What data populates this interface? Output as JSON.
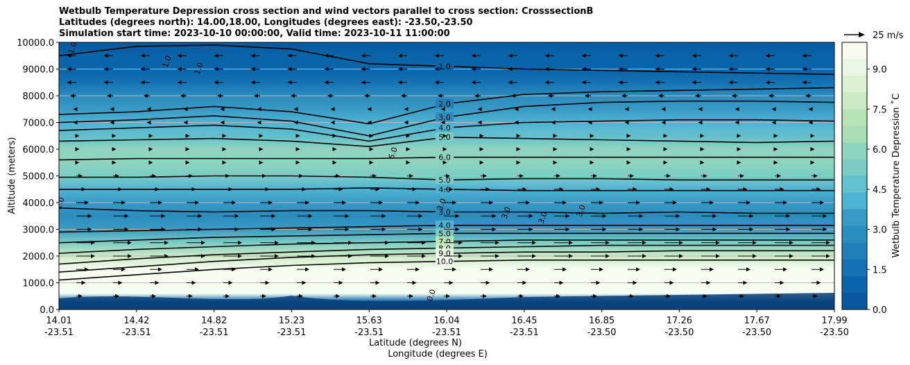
{
  "chart_data": {
    "type": "heatmap",
    "title_lines": [
      "Wetbulb Temperature Depression cross section and wind vectors parallel to cross section: CrosssectionB",
      "Latitudes (degrees north): 14.00,18.00, Longitudes (degrees east): -23.50,-23.50",
      "Simulation start time: 2023-10-10 00:00:00, Valid time: 2023-10-11 11:00:00"
    ],
    "ylabel": "Altitude (meters)",
    "xlabel_lat": "Latitude (degrees N)",
    "xlabel_lon": "Longitude (degrees E)",
    "ylim": [
      0,
      10000
    ],
    "y_ticks": [
      0,
      1000,
      2000,
      3000,
      4000,
      5000,
      6000,
      7000,
      8000,
      9000,
      10000
    ],
    "y_tick_labels": [
      "0.0",
      "1000.0",
      "2000.0",
      "3000.0",
      "4000.0",
      "5000.0",
      "6000.0",
      "7000.0",
      "8000.0",
      "9000.0",
      "10000.0"
    ],
    "x_ticks": [
      {
        "lat": "14.01",
        "lon": "-23.51"
      },
      {
        "lat": "14.42",
        "lon": "-23.51"
      },
      {
        "lat": "14.82",
        "lon": "-23.51"
      },
      {
        "lat": "15.23",
        "lon": "-23.51"
      },
      {
        "lat": "15.63",
        "lon": "-23.51"
      },
      {
        "lat": "16.04",
        "lon": "-23.51"
      },
      {
        "lat": "16.45",
        "lon": "-23.51"
      },
      {
        "lat": "16.85",
        "lon": "-23.50"
      },
      {
        "lat": "17.26",
        "lon": "-23.50"
      },
      {
        "lat": "17.67",
        "lon": "-23.50"
      },
      {
        "lat": "17.99",
        "lon": "-23.50"
      }
    ],
    "colorbar": {
      "label": "Wetbulb Temperature Depression ˚C",
      "min": 0,
      "max": 10,
      "ticks": [
        0,
        1.5,
        3,
        4.5,
        6,
        7.5,
        9
      ],
      "tick_labels": [
        "0.0",
        "1.5",
        "3.0",
        "4.5",
        "6.0",
        "7.5",
        "9.0"
      ],
      "colors": [
        "#08589e",
        "#0a64a8",
        "#1571b1",
        "#227eb8",
        "#2b8cbe",
        "#3999c5",
        "#4eb3d3",
        "#62bfcd",
        "#7bccc4",
        "#8fd4bf",
        "#a8ddb5",
        "#b8e3b6",
        "#ccebc5",
        "#dcf1d3",
        "#e8f6e2",
        "#f7fcf0"
      ]
    },
    "wind_key": {
      "label": "25 m/s",
      "speed": 25
    },
    "depression_profile": [
      {
        "alt": 0,
        "value": 0.3
      },
      {
        "alt": 300,
        "value": 0.8
      },
      {
        "alt": 600,
        "value": 10.0
      },
      {
        "alt": 1000,
        "value": 10.0
      },
      {
        "alt": 1500,
        "value": 9.5
      },
      {
        "alt": 2000,
        "value": 7.5
      },
      {
        "alt": 2500,
        "value": 5.0
      },
      {
        "alt": 3000,
        "value": 3.5
      },
      {
        "alt": 3500,
        "value": 3.0
      },
      {
        "alt": 4000,
        "value": 3.2
      },
      {
        "alt": 4500,
        "value": 4.0
      },
      {
        "alt": 5000,
        "value": 5.2
      },
      {
        "alt": 5500,
        "value": 6.2
      },
      {
        "alt": 6000,
        "value": 5.8
      },
      {
        "alt": 6500,
        "value": 4.8
      },
      {
        "alt": 7000,
        "value": 3.8
      },
      {
        "alt": 7500,
        "value": 3.2
      },
      {
        "alt": 8000,
        "value": 2.5
      },
      {
        "alt": 8500,
        "value": 1.8
      },
      {
        "alt": 9000,
        "value": 1.2
      },
      {
        "alt": 9500,
        "value": 0.8
      },
      {
        "alt": 10000,
        "value": 0.5
      }
    ],
    "contours": [
      {
        "label": "1.0",
        "alts": [
          9500,
          9850,
          9900,
          9750,
          9200,
          9100,
          9000,
          8950,
          8900,
          8850,
          8800
        ]
      },
      {
        "label": "2.0",
        "alts": [
          7300,
          7400,
          7600,
          7400,
          6950,
          7700,
          8050,
          8150,
          8200,
          8250,
          8300
        ]
      },
      {
        "label": "3.0",
        "alts": [
          7000,
          7100,
          7250,
          7050,
          6500,
          7200,
          7600,
          7750,
          7800,
          7800,
          7750
        ]
      },
      {
        "label": "4.0",
        "alts": [
          6700,
          6800,
          6900,
          6750,
          6300,
          6800,
          7000,
          7050,
          7100,
          7100,
          7050
        ]
      },
      {
        "label": "5.0",
        "alts": [
          6300,
          6350,
          6400,
          6300,
          6100,
          6450,
          6400,
          6350,
          6300,
          6250,
          6300
        ]
      },
      {
        "label": "6.0",
        "alts": [
          5600,
          5650,
          5650,
          5650,
          5650,
          5700,
          5700,
          5700,
          5700,
          5700,
          5700
        ]
      },
      {
        "label": "5.0",
        "alts": [
          4950,
          4950,
          5000,
          5000,
          4950,
          4850,
          4900,
          4900,
          4850,
          4850,
          4850
        ]
      },
      {
        "label": "4.0",
        "alts": [
          4500,
          4500,
          4500,
          4500,
          4550,
          4500,
          4450,
          4450,
          4450,
          4450,
          4450
        ]
      },
      {
        "label": "3.0",
        "alts": [
          3800,
          3700,
          3650,
          3700,
          3700,
          3650,
          3650,
          3600,
          3650,
          3600,
          3600
        ]
      },
      {
        "label": "4.0",
        "alts": [
          2900,
          2950,
          3000,
          3050,
          3100,
          3150,
          3150,
          3150,
          3150,
          3150,
          3150
        ]
      },
      {
        "label": "5.0",
        "alts": [
          2500,
          2600,
          2700,
          2750,
          2800,
          2850,
          2850,
          2850,
          2850,
          2850,
          2850
        ]
      },
      {
        "label": "7.0",
        "alts": [
          2100,
          2250,
          2350,
          2450,
          2500,
          2550,
          2600,
          2600,
          2600,
          2600,
          2600
        ]
      },
      {
        "label": "8.0",
        "alts": [
          1700,
          1900,
          2050,
          2150,
          2250,
          2300,
          2350,
          2400,
          2400,
          2400,
          2400
        ]
      },
      {
        "label": "9.0",
        "alts": [
          1400,
          1600,
          1800,
          1950,
          2050,
          2100,
          2150,
          2150,
          2200,
          2200,
          2200
        ]
      },
      {
        "label": "10.0",
        "alts": [
          1100,
          1300,
          1500,
          1650,
          1750,
          1800,
          1850,
          1850,
          1850,
          1850,
          1850
        ]
      }
    ],
    "extra_contour_labels": [
      "1.0",
      "1.0",
      "1.0",
      "6.0",
      "2.0",
      "3.0",
      "3.0",
      "3.0",
      "3.0",
      "10.0"
    ],
    "wind_rows": [
      {
        "alt": 9500,
        "u": -3
      },
      {
        "alt": 9000,
        "u": -3
      },
      {
        "alt": 8500,
        "u": -3
      },
      {
        "alt": 8000,
        "u": -2
      },
      {
        "alt": 7500,
        "u": -1
      },
      {
        "alt": 7000,
        "u": -1
      },
      {
        "alt": 6500,
        "u": 1
      },
      {
        "alt": 6000,
        "u": 1
      },
      {
        "alt": 5500,
        "u": 1
      },
      {
        "alt": 5000,
        "u": 2
      },
      {
        "alt": 4500,
        "u": 3
      },
      {
        "alt": 4000,
        "u": 4
      },
      {
        "alt": 3500,
        "u": 5
      },
      {
        "alt": 3000,
        "u": 5
      },
      {
        "alt": 2500,
        "u": 6
      },
      {
        "alt": 2000,
        "u": 6
      },
      {
        "alt": 1500,
        "u": 4
      },
      {
        "alt": 1000,
        "u": 3
      },
      {
        "alt": 500,
        "u": 2
      }
    ]
  }
}
